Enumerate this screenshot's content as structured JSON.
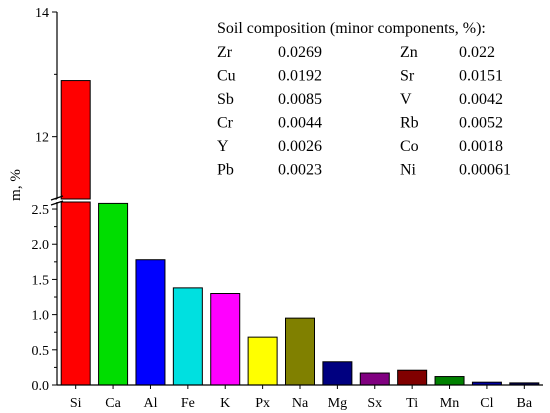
{
  "chart_data": {
    "type": "bar",
    "ylabel": "m, %",
    "categories": [
      "Si",
      "Ca",
      "Al",
      "Fe",
      "K",
      "Px",
      "Na",
      "Mg",
      "Sx",
      "Ti",
      "Mn",
      "Cl",
      "Ba"
    ],
    "values": [
      12.9,
      2.58,
      1.78,
      1.38,
      1.3,
      0.68,
      0.95,
      0.33,
      0.17,
      0.21,
      0.12,
      0.04,
      0.03
    ],
    "colors": [
      "#ff0000",
      "#00dd00",
      "#0000ff",
      "#00e0e0",
      "#ff00ff",
      "#ffff00",
      "#808000",
      "#000080",
      "#800080",
      "#800000",
      "#008000",
      "#0000a0",
      "#000050"
    ],
    "y_axis_break": {
      "lower_range": [
        0,
        2.6
      ],
      "upper_range": [
        11,
        14
      ],
      "lower_ticks": [
        "0.0",
        "0.5",
        "1.0",
        "1.5",
        "2.0",
        "2.5"
      ],
      "upper_ticks": [
        "12",
        "14"
      ]
    },
    "legend": null,
    "grid": false,
    "inset_table": {
      "title": "Soil composition (minor components, %):",
      "rows": [
        [
          "Zr",
          "0.0269",
          "Zn",
          "0.022"
        ],
        [
          "Cu",
          "0.0192",
          "Sr",
          "0.0151"
        ],
        [
          "Sb",
          "0.0085",
          "V",
          "0.0042"
        ],
        [
          "Cr",
          "0.0044",
          "Rb",
          "0.0052"
        ],
        [
          "Y",
          "0.0026",
          "Co",
          "0.0018"
        ],
        [
          "Pb",
          "0.0023",
          "Ni",
          "0.00061"
        ]
      ]
    }
  }
}
